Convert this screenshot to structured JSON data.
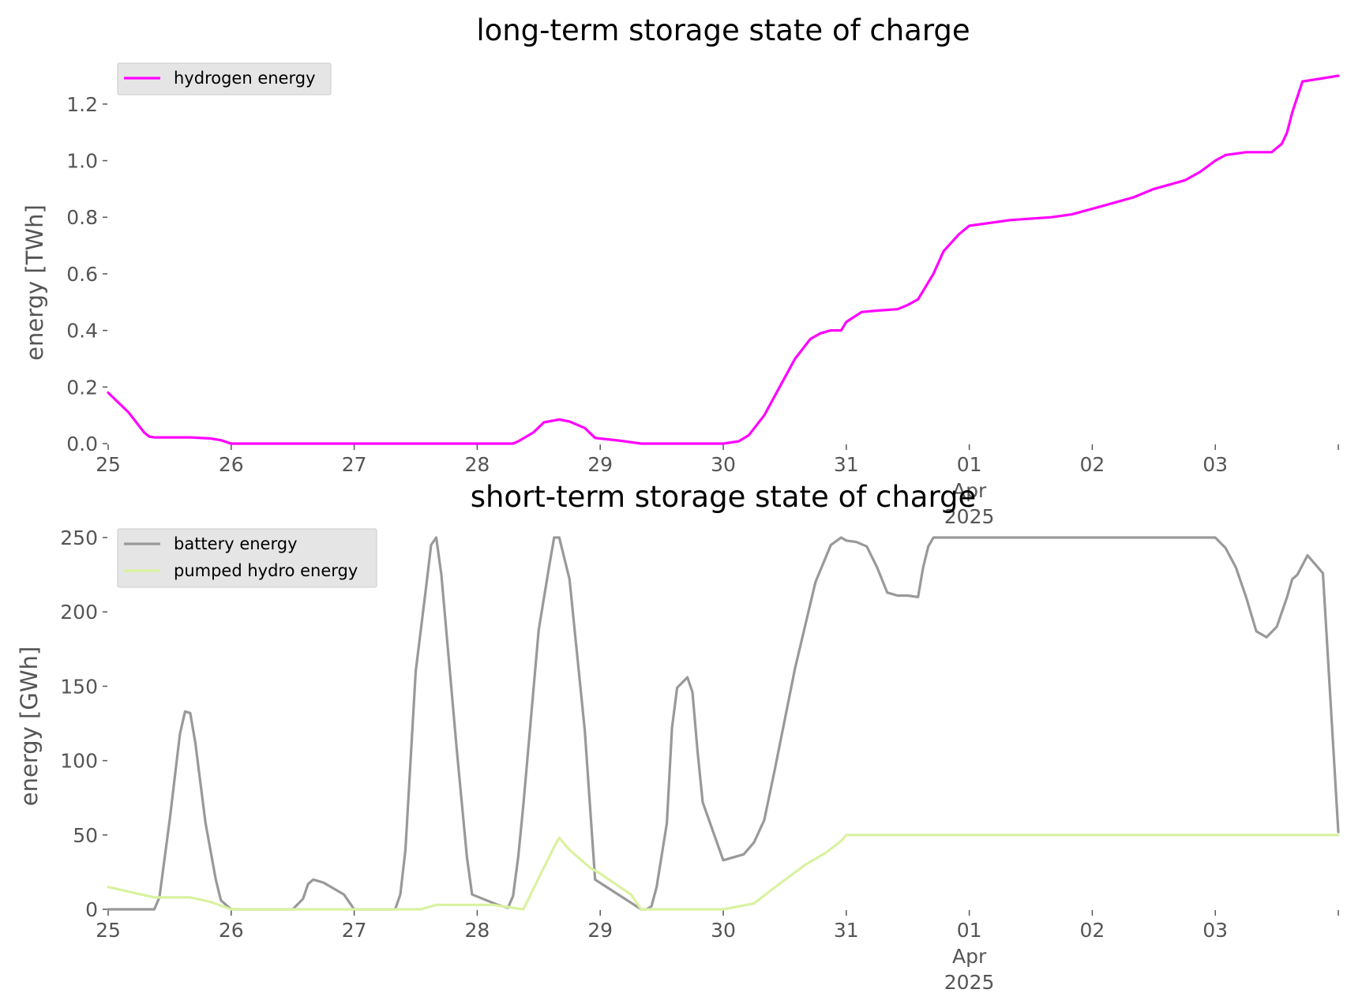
{
  "chart_data": [
    {
      "type": "line",
      "title": "long-term storage state of charge",
      "ylabel": "energy [TWh]",
      "xlabel": "",
      "xlim": [
        "2025-03-25T00:00",
        "2025-04-04T00:00"
      ],
      "ylim": [
        0,
        1.3
      ],
      "yticks": [
        0,
        0.2,
        0.4,
        0.6,
        0.8,
        1.0,
        1.2
      ],
      "ytick_labels": [
        "0.0",
        "0.2",
        "0.4",
        "0.6",
        "0.8",
        "1.0",
        "1.2"
      ],
      "xticks": [
        "2025-03-25",
        "2025-03-26",
        "2025-03-27",
        "2025-03-28",
        "2025-03-29",
        "2025-03-30",
        "2025-03-31",
        "2025-04-01",
        "2025-04-02",
        "2025-04-03",
        "2025-04-04"
      ],
      "xtick_labels": [
        "25",
        "26",
        "27",
        "28",
        "29",
        "30",
        "31",
        "01\nApr\n2025",
        "02",
        "03",
        ""
      ],
      "grid": false,
      "legend": "top-left",
      "series": [
        {
          "name": "hydrogen energy",
          "color": "#ff00ff",
          "x": [
            "2025-03-25T00:00",
            "2025-03-25T04:00",
            "2025-03-25T07:00",
            "2025-03-25T08:00",
            "2025-03-25T09:00",
            "2025-03-25T12:00",
            "2025-03-25T16:00",
            "2025-03-25T20:00",
            "2025-03-25T22:00",
            "2025-03-26T00:00",
            "2025-03-28T07:00",
            "2025-03-28T08:00",
            "2025-03-28T11:00",
            "2025-03-28T13:00",
            "2025-03-28T16:00",
            "2025-03-28T18:00",
            "2025-03-28T21:00",
            "2025-03-28T23:00",
            "2025-03-29T04:00",
            "2025-03-29T08:00",
            "2025-03-29T12:00",
            "2025-03-30T00:00",
            "2025-03-30T03:00",
            "2025-03-30T05:00",
            "2025-03-30T08:00",
            "2025-03-30T11:00",
            "2025-03-30T14:00",
            "2025-03-30T17:00",
            "2025-03-30T19:00",
            "2025-03-30T21:00",
            "2025-03-30T23:00",
            "2025-03-31T00:00",
            "2025-03-31T03:00",
            "2025-03-31T06:00",
            "2025-03-31T10:00",
            "2025-03-31T12:00",
            "2025-03-31T14:00",
            "2025-03-31T17:00",
            "2025-03-31T19:00",
            "2025-03-31T22:00",
            "2025-04-01T00:00",
            "2025-04-01T08:00",
            "2025-04-01T16:00",
            "2025-04-01T20:00",
            "2025-04-02T02:00",
            "2025-04-02T08:00",
            "2025-04-02T12:00",
            "2025-04-02T18:00",
            "2025-04-02T21:00",
            "2025-04-03T00:00",
            "2025-04-03T02:00",
            "2025-04-03T06:00",
            "2025-04-03T08:00",
            "2025-04-03T09:00",
            "2025-04-03T11:00",
            "2025-04-03T13:00",
            "2025-04-03T14:00",
            "2025-04-03T15:00",
            "2025-04-03T17:00",
            "2025-04-04T00:00"
          ],
          "values": [
            0.18,
            0.11,
            0.04,
            0.025,
            0.022,
            0.022,
            0.022,
            0.018,
            0.012,
            0.0,
            0.0,
            0.008,
            0.04,
            0.075,
            0.085,
            0.078,
            0.055,
            0.02,
            0.01,
            0.0,
            0.0,
            0.0,
            0.008,
            0.03,
            0.1,
            0.2,
            0.3,
            0.37,
            0.39,
            0.4,
            0.4,
            0.43,
            0.465,
            0.47,
            0.475,
            0.49,
            0.51,
            0.6,
            0.68,
            0.74,
            0.77,
            0.79,
            0.8,
            0.81,
            0.84,
            0.87,
            0.9,
            0.93,
            0.96,
            1.0,
            1.02,
            1.03,
            1.03,
            1.03,
            1.03,
            1.06,
            1.1,
            1.17,
            1.28,
            1.3
          ]
        }
      ]
    },
    {
      "type": "line",
      "title": "short-term storage state of charge",
      "ylabel": "energy [GWh]",
      "xlabel": "",
      "xlim": [
        "2025-03-25T00:00",
        "2025-04-04T00:00"
      ],
      "ylim": [
        0,
        250
      ],
      "yticks": [
        0,
        50,
        100,
        150,
        200,
        250
      ],
      "ytick_labels": [
        "0",
        "50",
        "100",
        "150",
        "200",
        "250"
      ],
      "xticks": [
        "2025-03-25",
        "2025-03-26",
        "2025-03-27",
        "2025-03-28",
        "2025-03-29",
        "2025-03-30",
        "2025-03-31",
        "2025-04-01",
        "2025-04-02",
        "2025-04-03",
        "2025-04-04"
      ],
      "xtick_labels": [
        "25",
        "26",
        "27",
        "28",
        "29",
        "30",
        "31",
        "01\nApr\n2025",
        "02",
        "03",
        ""
      ],
      "grid": false,
      "legend": "top-left",
      "series": [
        {
          "name": "battery energy",
          "color": "#999999",
          "x": [
            "2025-03-25T00:00",
            "2025-03-25T09:00",
            "2025-03-25T10:00",
            "2025-03-25T12:00",
            "2025-03-25T14:00",
            "2025-03-25T15:00",
            "2025-03-25T16:00",
            "2025-03-25T17:00",
            "2025-03-25T19:00",
            "2025-03-25T21:00",
            "2025-03-25T22:00",
            "2025-03-26T00:00",
            "2025-03-26T12:00",
            "2025-03-26T14:00",
            "2025-03-26T15:00",
            "2025-03-26T16:00",
            "2025-03-26T18:00",
            "2025-03-26T20:00",
            "2025-03-26T22:00",
            "2025-03-26T24:00",
            "2025-03-27T08:00",
            "2025-03-27T09:00",
            "2025-03-27T10:00",
            "2025-03-27T12:00",
            "2025-03-27T14:00",
            "2025-03-27T15:00",
            "2025-03-27T16:00",
            "2025-03-27T17:00",
            "2025-03-27T20:00",
            "2025-03-27T22:00",
            "2025-03-27T23:00",
            "2025-03-28T04:00",
            "2025-03-28T06:00",
            "2025-03-28T07:00",
            "2025-03-28T08:00",
            "2025-03-28T09:00",
            "2025-03-28T12:00",
            "2025-03-28T14:00",
            "2025-03-28T15:00",
            "2025-03-28T16:00",
            "2025-03-28T18:00",
            "2025-03-28T21:00",
            "2025-03-28T23:00",
            "2025-03-29T08:00",
            "2025-03-29T09:00",
            "2025-03-29T10:00",
            "2025-03-29T11:00",
            "2025-03-29T13:00",
            "2025-03-29T14:00",
            "2025-03-29T15:00",
            "2025-03-29T17:00",
            "2025-03-29T18:00",
            "2025-03-29T19:00",
            "2025-03-29T20:00",
            "2025-03-30T00:00",
            "2025-03-30T04:00",
            "2025-03-30T06:00",
            "2025-03-30T08:00",
            "2025-03-30T10:00",
            "2025-03-30T14:00",
            "2025-03-30T18:00",
            "2025-03-30T21:00",
            "2025-03-30T23:00",
            "2025-03-31T00:00",
            "2025-03-31T02:00",
            "2025-03-31T04:00",
            "2025-03-31T06:00",
            "2025-03-31T08:00",
            "2025-03-31T10:00",
            "2025-03-31T12:00",
            "2025-03-31T14:00",
            "2025-03-31T15:00",
            "2025-03-31T16:00",
            "2025-03-31T17:00",
            "2025-03-31T18:00",
            "2025-04-01T00:00",
            "2025-04-03T00:00",
            "2025-04-03T02:00",
            "2025-04-03T04:00",
            "2025-04-03T06:00",
            "2025-04-03T08:00",
            "2025-04-03T10:00",
            "2025-04-03T12:00",
            "2025-04-03T14:00",
            "2025-04-03T15:00",
            "2025-04-03T16:00",
            "2025-04-03T18:00",
            "2025-04-03T21:00",
            "2025-04-04T00:00"
          ],
          "values": [
            0,
            0,
            8,
            60,
            118,
            133,
            132,
            112,
            58,
            20,
            6,
            0,
            0,
            7,
            17,
            20,
            18,
            14,
            10,
            0,
            0,
            10,
            40,
            160,
            216,
            245,
            250,
            225,
            108,
            35,
            10,
            3,
            1,
            9,
            35,
            70,
            188,
            230,
            250,
            250,
            222,
            120,
            20,
            0,
            0,
            2,
            15,
            58,
            122,
            149,
            156,
            146,
            106,
            72,
            33,
            37,
            45,
            60,
            93,
            162,
            220,
            245,
            250,
            248,
            247,
            244,
            230,
            213,
            211,
            211,
            210,
            230,
            244,
            250,
            250,
            250,
            250,
            243,
            230,
            210,
            187,
            183,
            190,
            210,
            222,
            225,
            238,
            226,
            52
          ]
        },
        {
          "name": "pumped hydro energy",
          "color": "#d9f2a0",
          "x": [
            "2025-03-25T00:00",
            "2025-03-25T09:00",
            "2025-03-25T16:00",
            "2025-03-25T20:00",
            "2025-03-26T00:00",
            "2025-03-27T10:00",
            "2025-03-27T13:00",
            "2025-03-27T14:00",
            "2025-03-27T16:00",
            "2025-03-28T03:00",
            "2025-03-28T09:00",
            "2025-03-28T13:00",
            "2025-03-28T15:00",
            "2025-03-28T16:00",
            "2025-03-28T18:00",
            "2025-03-28T20:00",
            "2025-03-28T22:00",
            "2025-03-29T00:00",
            "2025-03-29T06:00",
            "2025-03-29T08:00",
            "2025-03-30T00:00",
            "2025-03-30T06:00",
            "2025-03-30T09:00",
            "2025-03-30T16:00",
            "2025-03-30T20:00",
            "2025-03-30T23:00",
            "2025-03-31T00:00",
            "2025-04-04T00:00"
          ],
          "values": [
            15,
            8,
            8,
            5,
            0,
            0,
            0,
            1,
            3,
            3,
            0,
            28,
            42,
            48,
            40,
            34,
            28,
            24,
            10,
            0,
            0,
            4,
            12,
            30,
            38,
            46,
            50,
            50
          ]
        }
      ]
    }
  ]
}
